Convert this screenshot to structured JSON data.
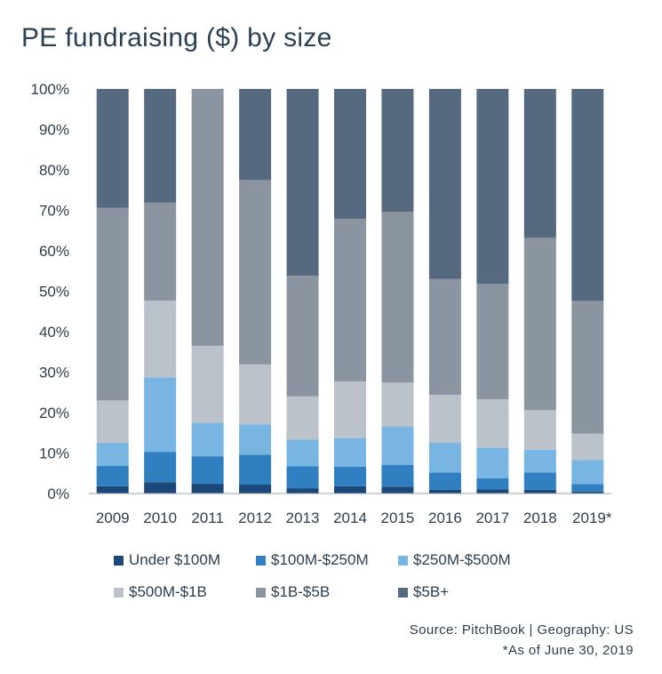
{
  "chart_data": {
    "type": "bar",
    "stacked": true,
    "title": "PE fundraising ($) by size",
    "xlabel": "",
    "ylabel": "",
    "ylim": [
      0,
      100
    ],
    "yticks": [
      "0%",
      "10%",
      "20%",
      "30%",
      "40%",
      "50%",
      "60%",
      "70%",
      "80%",
      "90%",
      "100%"
    ],
    "categories": [
      "2009",
      "2010",
      "2011",
      "2012",
      "2013",
      "2014",
      "2015",
      "2016",
      "2017",
      "2018",
      "2019*"
    ],
    "series": [
      {
        "name": "Under $100M",
        "color": "#1b4878",
        "values": [
          1.8,
          2.8,
          2.4,
          2.2,
          1.3,
          1.8,
          1.7,
          0.9,
          1.0,
          0.9,
          0.5
        ]
      },
      {
        "name": "$100M-$250M",
        "color": "#2f7fc1",
        "values": [
          5.0,
          7.5,
          6.8,
          7.4,
          5.4,
          4.8,
          5.4,
          4.3,
          2.8,
          4.3,
          1.8
        ]
      },
      {
        "name": "$250M-$500M",
        "color": "#78b5e3",
        "values": [
          5.7,
          18.4,
          8.3,
          7.5,
          6.6,
          7.1,
          9.5,
          7.4,
          7.5,
          5.6,
          6.0
        ]
      },
      {
        "name": "$500M-$1B",
        "color": "#bcc2c9",
        "values": [
          10.5,
          19.0,
          19.0,
          14.8,
          10.7,
          14.0,
          10.8,
          11.8,
          12.0,
          9.8,
          6.5
        ]
      },
      {
        "name": "$1B-$5B",
        "color": "#8b95a1",
        "values": [
          47.6,
          24.2,
          63.5,
          45.6,
          29.8,
          40.2,
          42.2,
          28.6,
          28.5,
          42.6,
          32.8
        ]
      },
      {
        "name": "$5B+",
        "color": "#566a7f",
        "values": [
          29.4,
          28.1,
          0.0,
          22.5,
          46.2,
          32.1,
          30.4,
          47.0,
          48.2,
          36.8,
          52.4
        ]
      }
    ],
    "grid": false,
    "legend_position": "bottom"
  },
  "footer": {
    "source": "Source: PitchBook | Geography: US",
    "note": "*As of June 30, 2019"
  }
}
